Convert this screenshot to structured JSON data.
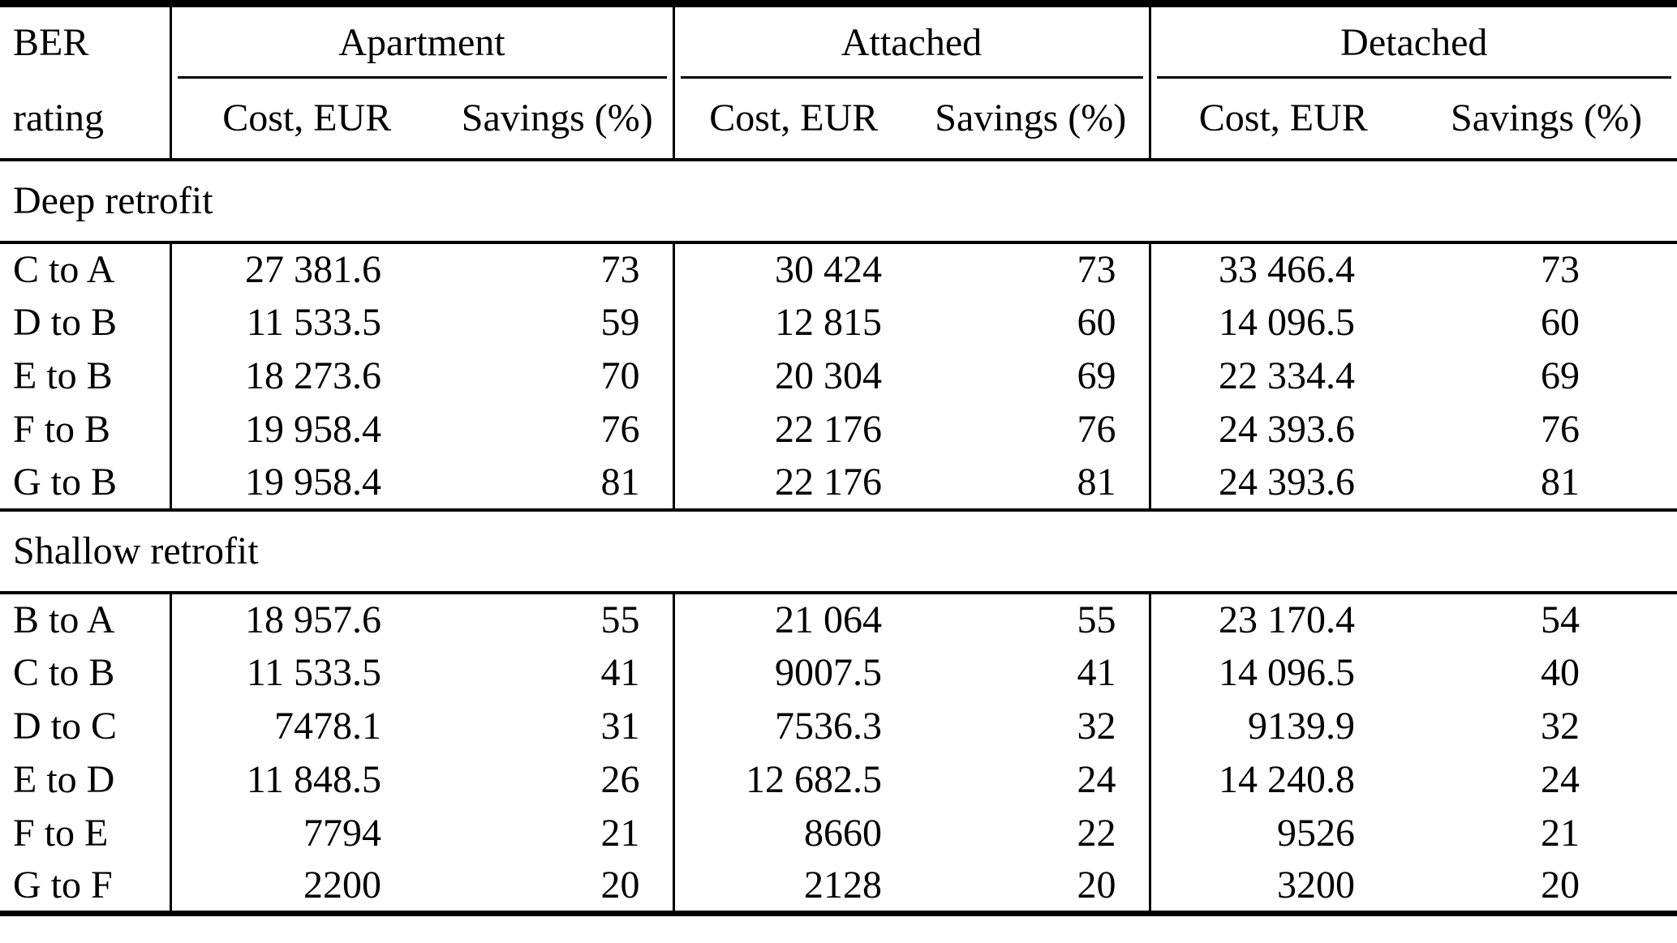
{
  "table": {
    "header": {
      "ber": "BER",
      "rating": "rating",
      "groups": [
        "Apartment",
        "Attached",
        "Detached"
      ],
      "cost_label": "Cost, EUR",
      "savings_label": "Savings (%)"
    },
    "sections": [
      {
        "title": "Deep retrofit",
        "rows": [
          {
            "rating": "C to A",
            "apt_cost": "27 381.6",
            "apt_sav": "73",
            "att_cost": "30 424",
            "att_sav": "73",
            "det_cost": "33 466.4",
            "det_sav": "73"
          },
          {
            "rating": "D to B",
            "apt_cost": "11 533.5",
            "apt_sav": "59",
            "att_cost": "12 815",
            "att_sav": "60",
            "det_cost": "14 096.5",
            "det_sav": "60"
          },
          {
            "rating": "E to B",
            "apt_cost": "18 273.6",
            "apt_sav": "70",
            "att_cost": "20 304",
            "att_sav": "69",
            "det_cost": "22 334.4",
            "det_sav": "69"
          },
          {
            "rating": "F to B",
            "apt_cost": "19 958.4",
            "apt_sav": "76",
            "att_cost": "22 176",
            "att_sav": "76",
            "det_cost": "24 393.6",
            "det_sav": "76"
          },
          {
            "rating": "G to B",
            "apt_cost": "19 958.4",
            "apt_sav": "81",
            "att_cost": "22 176",
            "att_sav": "81",
            "det_cost": "24 393.6",
            "det_sav": "81"
          }
        ]
      },
      {
        "title": "Shallow retrofit",
        "rows": [
          {
            "rating": "B to A",
            "apt_cost": "18 957.6",
            "apt_sav": "55",
            "att_cost": "21 064",
            "att_sav": "55",
            "det_cost": "23 170.4",
            "det_sav": "54"
          },
          {
            "rating": "C to B",
            "apt_cost": "11 533.5",
            "apt_sav": "41",
            "att_cost": "9007.5",
            "att_sav": "41",
            "det_cost": "14 096.5",
            "det_sav": "40"
          },
          {
            "rating": "D to C",
            "apt_cost": "7478.1",
            "apt_sav": "31",
            "att_cost": "7536.3",
            "att_sav": "32",
            "det_cost": "9139.9",
            "det_sav": "32"
          },
          {
            "rating": "E to D",
            "apt_cost": "11 848.5",
            "apt_sav": "26",
            "att_cost": "12 682.5",
            "att_sav": "24",
            "det_cost": "14 240.8",
            "det_sav": "24"
          },
          {
            "rating": "F to E",
            "apt_cost": "7794",
            "apt_sav": "21",
            "att_cost": "8660",
            "att_sav": "22",
            "det_cost": "9526",
            "det_sav": "21"
          },
          {
            "rating": "G to F",
            "apt_cost": "2200",
            "apt_sav": "20",
            "att_cost": "2128",
            "att_sav": "20",
            "det_cost": "3200",
            "det_sav": "20"
          }
        ]
      }
    ],
    "colors": {
      "rule": "#000000",
      "text": "#000000",
      "background": "#ffffff"
    }
  },
  "chart_data": {
    "type": "table",
    "columns": [
      "BER rating",
      "Apartment Cost, EUR",
      "Apartment Savings (%)",
      "Attached Cost, EUR",
      "Attached Savings (%)",
      "Detached Cost, EUR",
      "Detached Savings (%)"
    ],
    "sections": [
      {
        "title": "Deep retrofit",
        "rows": [
          [
            "C to A",
            27381.6,
            73,
            30424,
            73,
            33466.4,
            73
          ],
          [
            "D to B",
            11533.5,
            59,
            12815,
            60,
            14096.5,
            60
          ],
          [
            "E to B",
            18273.6,
            70,
            20304,
            69,
            22334.4,
            69
          ],
          [
            "F to B",
            19958.4,
            76,
            22176,
            76,
            24393.6,
            76
          ],
          [
            "G to B",
            19958.4,
            81,
            22176,
            81,
            24393.6,
            81
          ]
        ]
      },
      {
        "title": "Shallow retrofit",
        "rows": [
          [
            "B to A",
            18957.6,
            55,
            21064,
            55,
            23170.4,
            54
          ],
          [
            "C to B",
            11533.5,
            41,
            9007.5,
            41,
            14096.5,
            40
          ],
          [
            "D to C",
            7478.1,
            31,
            7536.3,
            32,
            9139.9,
            32
          ],
          [
            "E to D",
            11848.5,
            26,
            12682.5,
            24,
            14240.8,
            24
          ],
          [
            "F to E",
            7794,
            21,
            8660,
            22,
            9526,
            21
          ],
          [
            "G to F",
            2200,
            20,
            2128,
            20,
            3200,
            20
          ]
        ]
      }
    ]
  }
}
